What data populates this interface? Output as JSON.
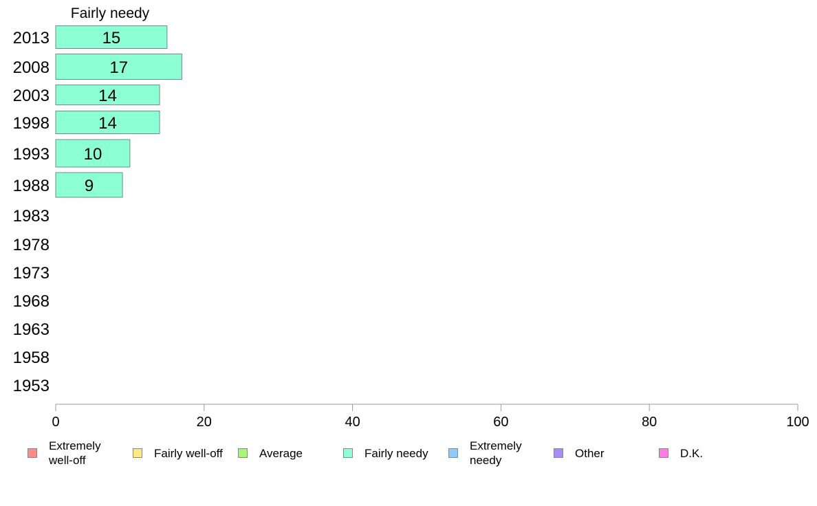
{
  "chart_data": {
    "type": "bar",
    "orientation": "horizontal",
    "title": "Fairly needy",
    "categories": [
      "2013",
      "2008",
      "2003",
      "1998",
      "1993",
      "1988",
      "1983",
      "1978",
      "1973",
      "1968",
      "1963",
      "1958",
      "1953"
    ],
    "series": [
      {
        "name": "Fairly needy",
        "values": [
          15,
          17,
          14,
          14,
          10,
          9,
          null,
          null,
          null,
          null,
          null,
          null,
          null
        ],
        "color": "#8cffd4"
      }
    ],
    "xlim": [
      0,
      100
    ],
    "xticks": [
      0,
      20,
      40,
      60,
      80,
      100
    ],
    "grid": false,
    "legend_position": "bottom",
    "legend": [
      {
        "label": "Extremely well-off",
        "color": "#ff8a8a"
      },
      {
        "label": "Fairly well-off",
        "color": "#ffe680"
      },
      {
        "label": "Average",
        "color": "#a6f57a"
      },
      {
        "label": "Fairly needy",
        "color": "#8cffd4"
      },
      {
        "label": "Extremely needy",
        "color": "#8ccaff"
      },
      {
        "label": "Other",
        "color": "#a78bfa"
      },
      {
        "label": "D.K.",
        "color": "#ff7ae6"
      }
    ]
  }
}
